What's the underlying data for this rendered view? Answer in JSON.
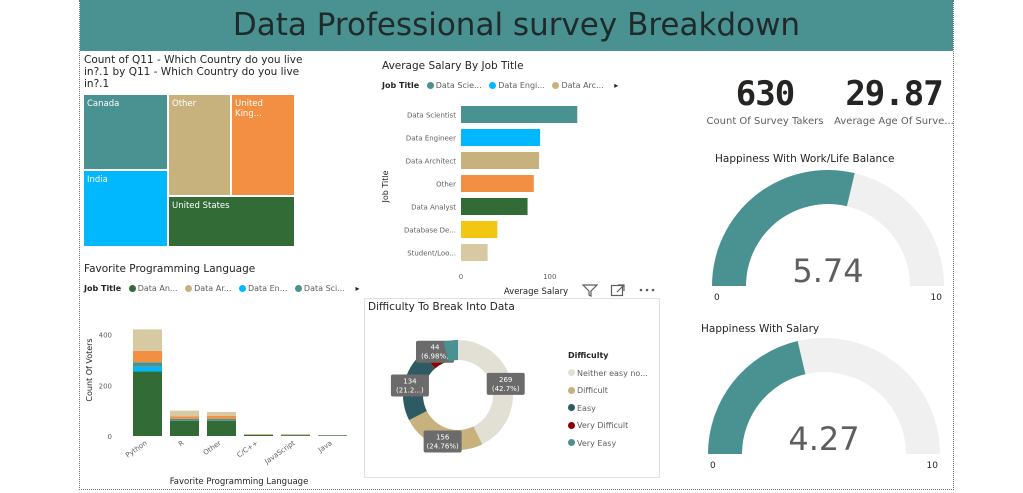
{
  "banner": {
    "title": "Data Professional survey Breakdown"
  },
  "colors": {
    "teal": "#4a9191",
    "blue": "#01b8ff",
    "tan": "#c7b27d",
    "orange": "#f28f43",
    "green": "#326b35",
    "yellow": "#f1c714",
    "sand": "#d7c9a2",
    "darkteal": "#2e5a63",
    "red": "#8b0000",
    "lightgray": "#e2e0d5"
  },
  "treemap": {
    "title_line1": "Count of Q11 - Which Country do you live",
    "title_line2": "in?.1 by Q11 - Which Country do you live",
    "title_line3": "in?.1",
    "cells": [
      {
        "label": "Canada",
        "color": "#4a9191"
      },
      {
        "label": "Other",
        "color": "#c7b27d"
      },
      {
        "label": "United King...",
        "color": "#f28f43"
      },
      {
        "label": "India",
        "color": "#01b8ff"
      },
      {
        "label": "United States",
        "color": "#326b35"
      }
    ]
  },
  "salary_chart": {
    "title": "Average Salary By Job Title",
    "legend_title": "Job Title",
    "legend_items": [
      "Data Scie...",
      "Data Engi...",
      "Data Arc..."
    ],
    "more_icon": "triangle-right-icon"
  },
  "language_chart": {
    "title": "Favorite Programming Language",
    "legend_title": "Job Title",
    "legend_items": [
      "Data An...",
      "Data Ar...",
      "Data En...",
      "Data Sci..."
    ],
    "more_icon": "triangle-right-icon"
  },
  "donut_chart": {
    "title": "Difficulty To Break Into Data",
    "legend_title": "Difficulty"
  },
  "kpis": {
    "survey_takers": {
      "value": "630",
      "label": "Count Of Survey Takers"
    },
    "average_age": {
      "value": "29.87",
      "label": "Average Age Of Surve..."
    }
  },
  "gauges": {
    "work_life": {
      "title": "Happiness With Work/Life Balance"
    },
    "salary": {
      "title": "Happiness With Salary"
    }
  },
  "visual_icons": [
    "filter-icon",
    "focus-mode-icon",
    "more-options-icon"
  ],
  "chart_data": [
    {
      "type": "treemap",
      "title": "Count of Q11 - Which Country do you live in?.1 by Q11 - Which Country do you live in?.1",
      "categories": [
        "Canada",
        "Other",
        "United King...",
        "India",
        "United States"
      ]
    },
    {
      "type": "bar",
      "orientation": "horizontal",
      "title": "Average Salary By Job Title",
      "xlabel": "Average Salary",
      "ylabel": "Job Title",
      "categories": [
        "Data Scientist",
        "Data Engineer",
        "Data Architect",
        "Other",
        "Data Analyst",
        "Database De...",
        "Student/Loo..."
      ],
      "values": [
        131,
        89,
        88,
        82,
        75,
        41,
        30
      ],
      "colors": [
        "#4a9191",
        "#01b8ff",
        "#c7b27d",
        "#f28f43",
        "#326b35",
        "#f1c714",
        "#d7c9a2"
      ],
      "xlim": [
        0,
        160
      ],
      "xticks": [
        0,
        100
      ]
    },
    {
      "type": "bar",
      "stacked": true,
      "title": "Favorite Programming Language",
      "xlabel": "Favorite Programming Language",
      "ylabel": "Count Of Voters",
      "categories": [
        "Python",
        "R",
        "Other",
        "C/C++",
        "JavaScript",
        "Java"
      ],
      "series": [
        {
          "name": "Data An...",
          "color": "#326b35",
          "values": [
            255,
            60,
            60,
            5,
            3,
            2
          ]
        },
        {
          "name": "Data Ar...",
          "color": "#c7b27d",
          "values": [
            0,
            0,
            0,
            0,
            0,
            0
          ]
        },
        {
          "name": "Data En...",
          "color": "#01b8ff",
          "values": [
            18,
            0,
            0,
            0,
            0,
            0
          ]
        },
        {
          "name": "Data Sci...",
          "color": "#4a9191",
          "values": [
            18,
            8,
            8,
            0,
            2,
            1
          ]
        },
        {
          "name": "",
          "color": "#f28f43",
          "values": [
            45,
            10,
            12,
            1,
            1,
            0
          ]
        },
        {
          "name": "",
          "color": "#d7c9a2",
          "values": [
            85,
            22,
            15,
            2,
            2,
            1
          ]
        }
      ],
      "ylim": [
        0,
        450
      ],
      "yticks": [
        0,
        200,
        400
      ]
    },
    {
      "type": "pie",
      "donut": true,
      "title": "Difficulty To Break Into Data",
      "legend_title": "Difficulty",
      "legend_position": "right",
      "slices": [
        {
          "name": "Neither easy no...",
          "value": 269,
          "label": "269",
          "pct": "(42.7%)",
          "color": "#e2e0d5"
        },
        {
          "name": "Difficult",
          "value": 156,
          "label": "156",
          "pct": "(24.76%)",
          "color": "#c7b27d"
        },
        {
          "name": "Easy",
          "value": 134,
          "label": "134",
          "pct": "(21.2...)",
          "color": "#2e5a63"
        },
        {
          "name": "Very Difficult",
          "value": 44,
          "label": "44",
          "pct": "(6.98%)",
          "color": "#8b0000"
        },
        {
          "name": "Very Easy",
          "value": 27,
          "label": "",
          "pct": "",
          "color": "#4a9191"
        }
      ]
    },
    {
      "type": "gauge",
      "title": "Happiness With Work/Life Balance",
      "value": 5.74,
      "value_label": "5.74",
      "min": 0,
      "max": 10,
      "min_label": "0",
      "max_label": "10"
    },
    {
      "type": "gauge",
      "title": "Happiness With Salary",
      "value": 4.27,
      "value_label": "4.27",
      "min": 0,
      "max": 10,
      "min_label": "0",
      "max_label": "10"
    }
  ]
}
